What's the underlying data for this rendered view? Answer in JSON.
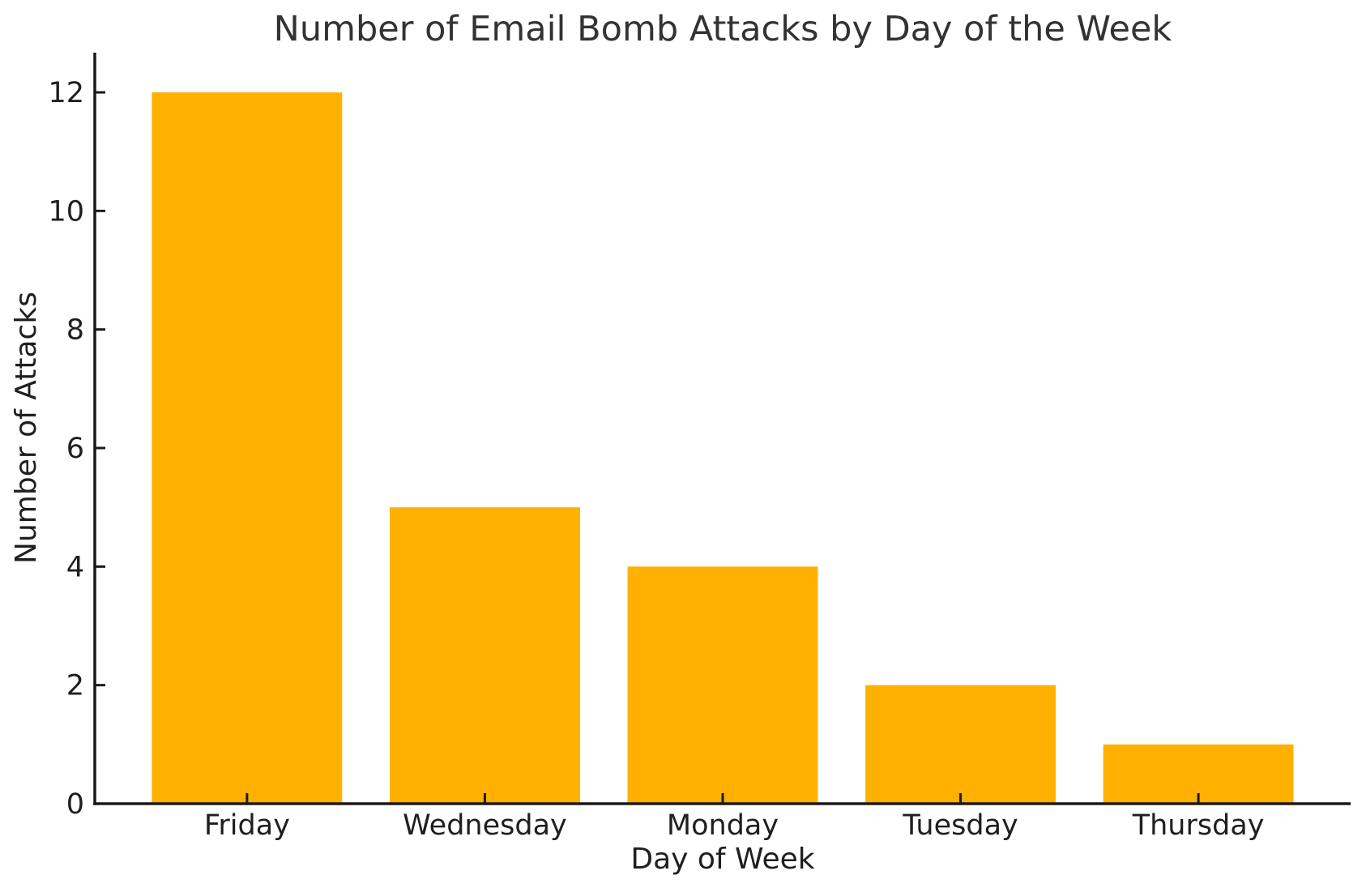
{
  "chart_data": {
    "type": "bar",
    "title": "Number of Email Bomb Attacks by Day of the Week",
    "xlabel": "Day of Week",
    "ylabel": "Number of Attacks",
    "categories": [
      "Friday",
      "Wednesday",
      "Monday",
      "Tuesday",
      "Thursday"
    ],
    "values": [
      12,
      5,
      4,
      2,
      1
    ],
    "yticks": [
      0,
      2,
      4,
      6,
      8,
      10,
      12
    ],
    "ylim": [
      0,
      12.67
    ],
    "grid": false,
    "legend": null,
    "bar_color": "#FFB000",
    "axis_color": "#1a1a1a",
    "text_color": "#1f1f1f",
    "background_color": "#ffffff"
  }
}
